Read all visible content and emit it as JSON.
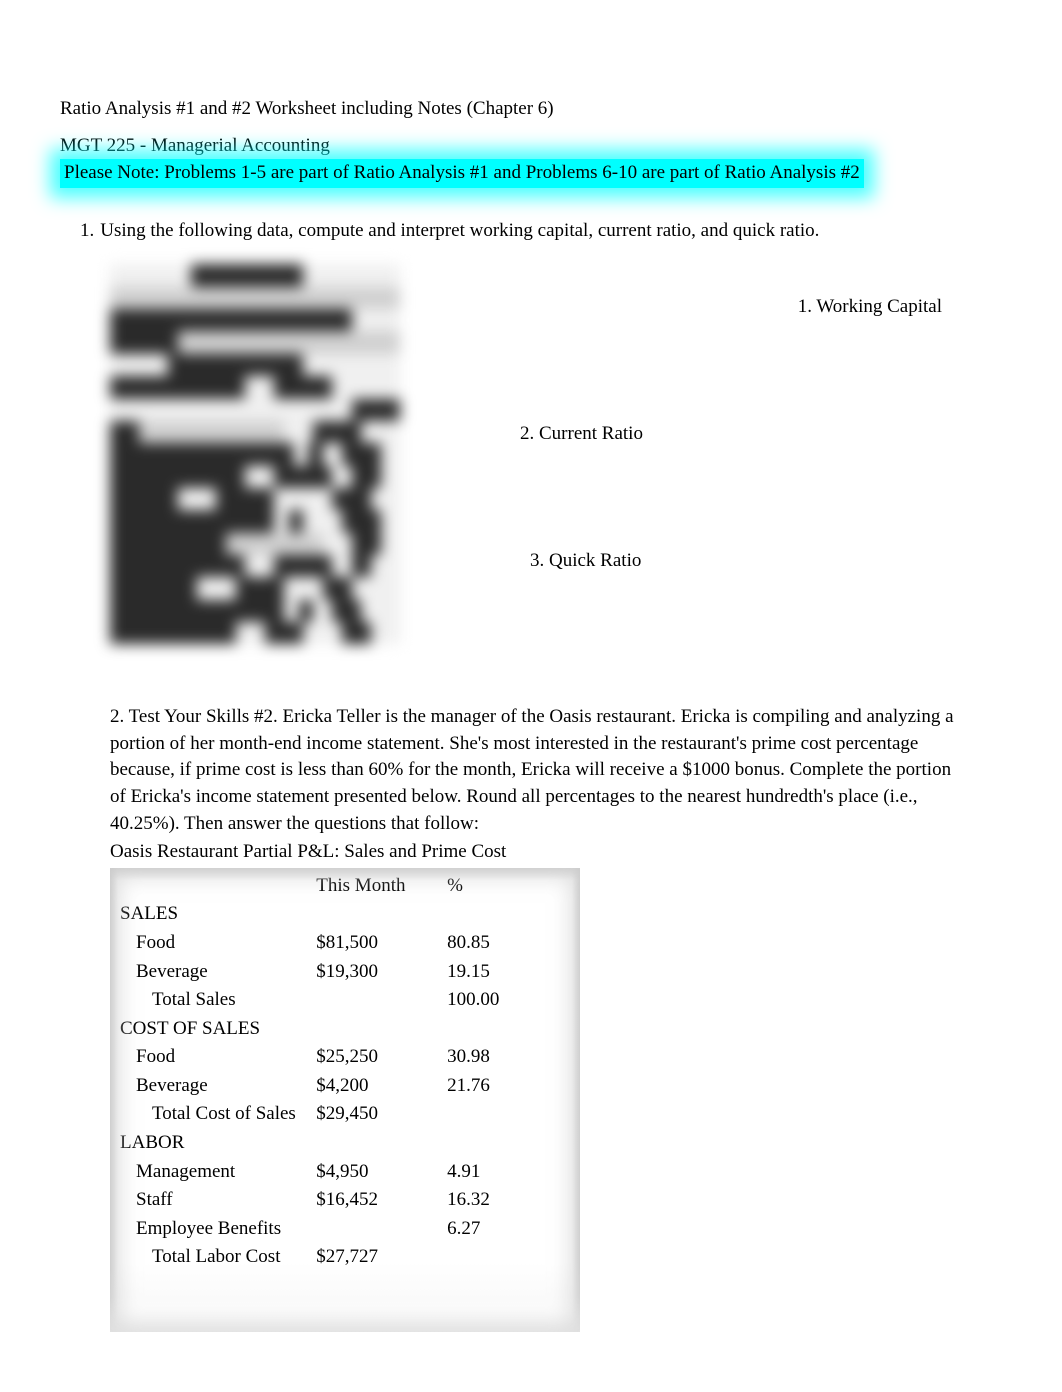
{
  "header": {
    "title": "Ratio Analysis #1 and #2 Worksheet including Notes (Chapter 6)",
    "course": "MGT 225 - Managerial Accounting",
    "note": "Please Note: Problems 1-5 are part of Ratio Analysis #1 and Problems 6-10 are part of Ratio Analysis #2"
  },
  "problem1": {
    "number": "1.",
    "text": "Using the following data, compute and interpret working capital, current ratio, and quick ratio.",
    "questions": {
      "q1": "1. Working Capital",
      "q2": "2.  Current Ratio",
      "q3": "3. Quick Ratio"
    }
  },
  "problem2": {
    "text": "2.  Test Your Skills #2.   Ericka Teller is the manager of the Oasis restaurant. Ericka is compiling and analyzing a portion of her month-end income statement. She's most interested in the restaurant's prime cost percentage because, if prime cost is less than 60% for the month, Ericka will receive a $1000 bonus. Complete the portion of Ericka's income statement presented below. Round all percentages to the nearest hundredth's place (i.e., 40.25%). Then answer the questions that follow:",
    "table_title": "Oasis Restaurant Partial P&L: Sales and Prime Cost"
  },
  "pl_table": {
    "columns": [
      "",
      "This Month",
      "%"
    ],
    "rows": [
      {
        "label": "SALES",
        "indent": 0,
        "month": "",
        "pct": ""
      },
      {
        "label": "Food",
        "indent": 1,
        "month": "$81,500",
        "pct": "80.85"
      },
      {
        "label": "Beverage",
        "indent": 1,
        "month": "$19,300",
        "pct": "19.15"
      },
      {
        "label": "Total Sales",
        "indent": 2,
        "month": "",
        "pct": "100.00"
      },
      {
        "label": "COST OF SALES",
        "indent": 0,
        "month": "",
        "pct": ""
      },
      {
        "label": "Food",
        "indent": 1,
        "month": "$25,250",
        "pct": "30.98"
      },
      {
        "label": "Beverage",
        "indent": 1,
        "month": "$4,200",
        "pct": "21.76"
      },
      {
        "label": "Total Cost of Sales",
        "indent": 2,
        "month": "$29,450",
        "pct": ""
      },
      {
        "label": "LABOR",
        "indent": 0,
        "month": "",
        "pct": ""
      },
      {
        "label": "Management",
        "indent": 1,
        "month": "$4,950",
        "pct": "4.91"
      },
      {
        "label": "Staff",
        "indent": 1,
        "month": "$16,452",
        "pct": "16.32"
      },
      {
        "label": "Employee Benefits",
        "indent": 1,
        "month": "",
        "pct": "6.27"
      },
      {
        "label": "Total Labor Cost",
        "indent": 2,
        "month": "$27,727",
        "pct": ""
      }
    ]
  },
  "styling": {
    "background_color": "#ffffff",
    "text_color": "#000000",
    "highlight_color": "#00ffff",
    "blur_color_light": "#d0d0d0",
    "blur_color_dark": "#2a2a2a",
    "font_family": "Times New Roman",
    "font_size_pt": 14
  }
}
